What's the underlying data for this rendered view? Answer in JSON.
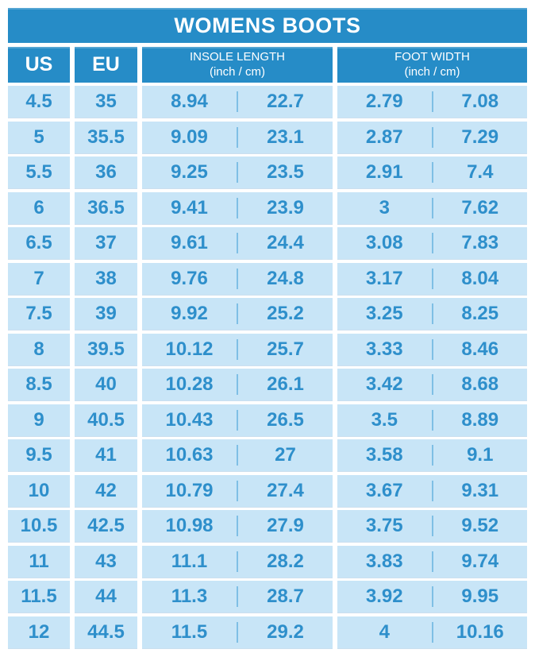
{
  "title": "WOMENS BOOTS",
  "colors": {
    "header_blue": "#268CC7",
    "cell_bg": "#C8E5F7",
    "cell_text": "#2E8FCB",
    "divider": "#7FBFE5",
    "page_bg": "#FFFFFF"
  },
  "header": {
    "us": "US",
    "eu": "EU",
    "insole": {
      "line1": "INSOLE LENGTH",
      "line2": "(inch / cm)"
    },
    "foot": {
      "line1": "FOOT WIDTH",
      "line2": "(inch / cm)"
    }
  },
  "chart_data": {
    "type": "table",
    "title": "WOMENS BOOTS",
    "columns": [
      "US",
      "EU",
      "Insole length (inch)",
      "Insole length (cm)",
      "Foot width (inch)",
      "Foot width (cm)"
    ],
    "rows": [
      [
        4.5,
        35,
        8.94,
        22.7,
        2.79,
        7.08
      ],
      [
        5,
        35.5,
        9.09,
        23.1,
        2.87,
        7.29
      ],
      [
        5.5,
        36,
        9.25,
        23.5,
        2.91,
        7.4
      ],
      [
        6,
        36.5,
        9.41,
        23.9,
        3,
        7.62
      ],
      [
        6.5,
        37,
        9.61,
        24.4,
        3.08,
        7.83
      ],
      [
        7,
        38,
        9.76,
        24.8,
        3.17,
        8.04
      ],
      [
        7.5,
        39,
        9.92,
        25.2,
        3.25,
        8.25
      ],
      [
        8,
        39.5,
        10.12,
        25.7,
        3.33,
        8.46
      ],
      [
        8.5,
        40,
        10.28,
        26.1,
        3.42,
        8.68
      ],
      [
        9,
        40.5,
        10.43,
        26.5,
        3.5,
        8.89
      ],
      [
        9.5,
        41,
        10.63,
        27,
        3.58,
        9.1
      ],
      [
        10,
        42,
        10.79,
        27.4,
        3.67,
        9.31
      ],
      [
        10.5,
        42.5,
        10.98,
        27.9,
        3.75,
        9.52
      ],
      [
        11,
        43,
        11.1,
        28.2,
        3.83,
        9.74
      ],
      [
        11.5,
        44,
        11.3,
        28.7,
        3.92,
        9.95
      ],
      [
        12,
        44.5,
        11.5,
        29.2,
        4,
        10.16
      ]
    ]
  }
}
